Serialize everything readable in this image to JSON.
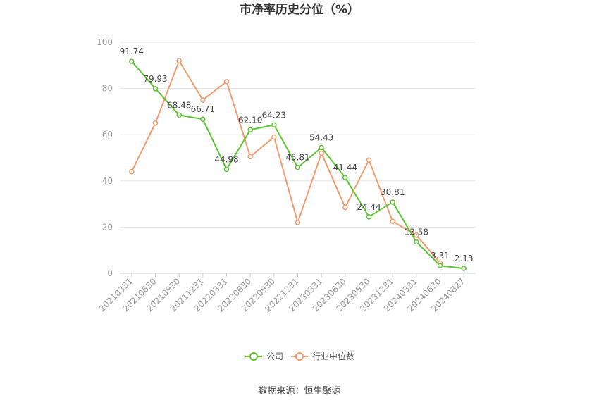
{
  "chart_data": {
    "type": "line",
    "title": "市净率历史分位（%）",
    "categories": [
      "20210331",
      "20210630",
      "20210930",
      "20211231",
      "20220331",
      "20220630",
      "20220930",
      "20221231",
      "20230331",
      "20230630",
      "20230930",
      "20231231",
      "20240331",
      "20240630",
      "20240827"
    ],
    "ylim": [
      0,
      100
    ],
    "yticks": [
      0,
      20,
      40,
      60,
      80,
      100
    ],
    "grid": true,
    "legend_position": "bottom",
    "series": [
      {
        "name": "公司",
        "color": "#5cc431",
        "values": [
          91.74,
          79.93,
          68.48,
          66.71,
          44.98,
          62.1,
          64.23,
          45.81,
          54.43,
          41.44,
          24.44,
          30.81,
          13.58,
          3.31,
          2.13
        ],
        "labels": [
          "91.74",
          "79.93",
          "68.48",
          "66.71",
          "44.98",
          "62.10",
          "64.23",
          "45.81",
          "54.43",
          "41.44",
          "24.44",
          "30.81",
          "13.58",
          "3.31",
          "2.13"
        ]
      },
      {
        "name": "行业中位数",
        "color": "#f39b6e",
        "values": [
          44,
          65,
          92,
          75,
          83,
          50.5,
          59,
          22,
          52,
          28.5,
          49,
          22.5,
          16.5,
          4.5,
          null
        ]
      }
    ],
    "source": "数据来源：恒生聚源"
  }
}
